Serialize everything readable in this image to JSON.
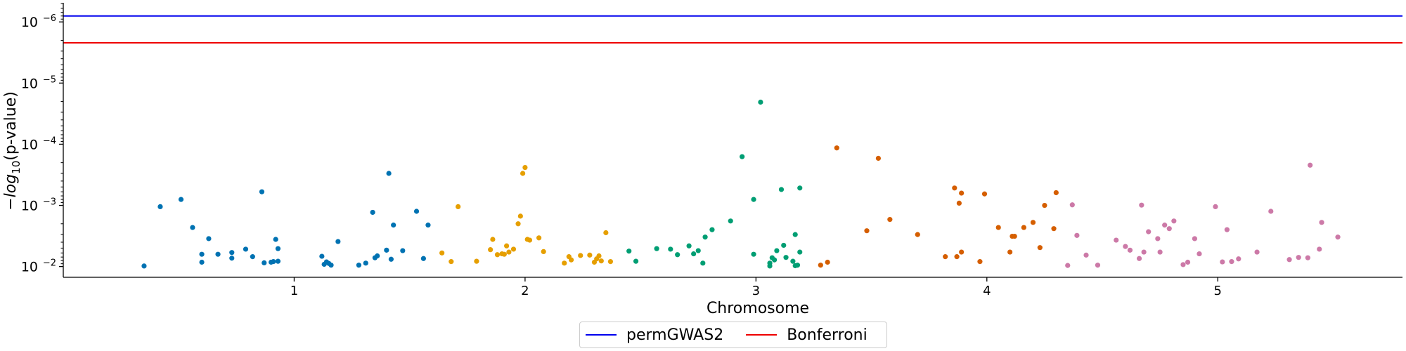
{
  "chart_data": {
    "type": "scatter",
    "title": "",
    "xlabel": "Chromosome",
    "ylabel": "−log10(p-value)",
    "ylabel_parts": {
      "prefix": "−",
      "log": "log",
      "sub": "10",
      "suffix": "(p-value)"
    },
    "yscale": "log",
    "yaxis_inverted": true,
    "ylim": [
      0.015,
      5e-07
    ],
    "xlim": [
      0,
      5.8
    ],
    "x_ticks": [
      {
        "value": 1,
        "label": "1"
      },
      {
        "value": 2,
        "label": "2"
      },
      {
        "value": 3,
        "label": "3"
      },
      {
        "value": 4,
        "label": "4"
      },
      {
        "value": 5,
        "label": "5"
      }
    ],
    "y_ticks": [
      {
        "value": 0.01,
        "base": "10",
        "exp": "−2"
      },
      {
        "value": 0.001,
        "base": "10",
        "exp": "−3"
      },
      {
        "value": 0.0001,
        "base": "10",
        "exp": "−4"
      },
      {
        "value": 1e-05,
        "base": "10",
        "exp": "−5"
      },
      {
        "value": 1e-06,
        "base": "10",
        "exp": "−6"
      }
    ],
    "thresholds": [
      {
        "name": "permGWAS2",
        "value": 8e-07,
        "color": "#0000ee"
      },
      {
        "name": "Bonferroni",
        "value": 2.2e-06,
        "color": "#ee0000"
      }
    ],
    "series": [
      {
        "name": "chr1",
        "color": "#0072b2",
        "x": [
          0.35,
          0.42,
          0.51,
          0.56,
          0.6,
          0.6,
          0.63,
          0.67,
          0.73,
          0.73,
          0.79,
          0.82,
          0.86,
          0.87,
          0.9,
          0.91,
          0.92,
          0.93,
          0.93,
          1.12,
          1.13,
          1.14,
          1.15,
          1.16,
          1.19,
          1.28,
          1.31,
          1.34,
          1.35,
          1.36,
          1.4,
          1.41,
          1.42,
          1.43,
          1.47,
          1.53,
          1.56,
          1.58
        ],
        "y": [
          0.0098,
          0.00105,
          0.0008,
          0.0023,
          0.0085,
          0.0063,
          0.0035,
          0.0063,
          0.0073,
          0.0059,
          0.0052,
          0.0069,
          0.0006,
          0.0087,
          0.0085,
          0.0083,
          0.0036,
          0.0051,
          0.0082,
          0.0068,
          0.0092,
          0.0084,
          0.0089,
          0.0095,
          0.0039,
          0.0095,
          0.0088,
          0.0013,
          0.0072,
          0.0067,
          0.0054,
          0.0003,
          0.0076,
          0.0021,
          0.0055,
          0.00125,
          0.0074,
          0.0021
        ]
      },
      {
        "name": "chr2",
        "color": "#e69f00",
        "x": [
          1.64,
          1.68,
          1.71,
          1.79,
          1.85,
          1.86,
          1.88,
          1.9,
          1.91,
          1.92,
          1.93,
          1.95,
          1.97,
          1.98,
          1.99,
          2.0,
          2.01,
          2.02,
          2.06,
          2.08,
          2.17,
          2.19,
          2.2,
          2.24,
          2.28,
          2.3,
          2.31,
          2.32,
          2.33,
          2.35,
          2.37
        ],
        "y": [
          0.006,
          0.0083,
          0.00105,
          0.0082,
          0.0053,
          0.0036,
          0.0064,
          0.0062,
          0.0063,
          0.0046,
          0.0058,
          0.0052,
          0.002,
          0.0015,
          0.0003,
          0.00024,
          0.0036,
          0.0037,
          0.0034,
          0.0057,
          0.0088,
          0.0069,
          0.0078,
          0.0066,
          0.0065,
          0.0085,
          0.0075,
          0.0067,
          0.0081,
          0.0028,
          0.0083
        ]
      },
      {
        "name": "chr3",
        "color": "#009e73",
        "x": [
          2.45,
          2.48,
          2.57,
          2.63,
          2.66,
          2.71,
          2.73,
          2.75,
          2.77,
          2.78,
          2.81,
          2.89,
          2.94,
          2.99,
          2.99,
          3.02,
          3.06,
          3.06,
          3.07,
          3.08,
          3.09,
          3.11,
          3.12,
          3.13,
          3.16,
          3.17,
          3.17,
          3.18,
          3.19,
          3.19
        ],
        "y": [
          0.0056,
          0.0082,
          0.0051,
          0.0052,
          0.0064,
          0.0046,
          0.0062,
          0.0055,
          0.0088,
          0.0033,
          0.0025,
          0.0018,
          0.00016,
          0.0063,
          0.0008,
          2.05e-05,
          0.0098,
          0.0088,
          0.0072,
          0.0078,
          0.0055,
          0.00055,
          0.0045,
          0.0071,
          0.0082,
          0.003,
          0.0097,
          0.0095,
          0.0058,
          0.00052
        ]
      },
      {
        "name": "chr4",
        "color": "#d55e00",
        "x": [
          3.28,
          3.31,
          3.35,
          3.48,
          3.53,
          3.58,
          3.7,
          3.82,
          3.86,
          3.87,
          3.88,
          3.89,
          3.89,
          3.97,
          3.99,
          4.05,
          4.1,
          4.11,
          4.12,
          4.16,
          4.2,
          4.23,
          4.25,
          4.29,
          4.3
        ],
        "y": [
          0.0095,
          0.0085,
          0.000115,
          0.0026,
          0.00017,
          0.0017,
          0.003,
          0.0069,
          0.00052,
          0.0069,
          0.00092,
          0.0058,
          0.00063,
          0.0083,
          0.00065,
          0.0023,
          0.0058,
          0.0032,
          0.0032,
          0.0023,
          0.0019,
          0.0049,
          0.001,
          0.0024,
          0.00062
        ]
      },
      {
        "name": "chr5",
        "color": "#cc79a7",
        "x": [
          4.35,
          4.37,
          4.39,
          4.43,
          4.48,
          4.56,
          4.6,
          4.62,
          4.66,
          4.67,
          4.68,
          4.7,
          4.74,
          4.75,
          4.77,
          4.79,
          4.81,
          4.85,
          4.87,
          4.9,
          4.92,
          4.99,
          5.02,
          5.04,
          5.06,
          5.09,
          5.17,
          5.23,
          5.31,
          5.35,
          5.39,
          5.4,
          5.44,
          5.45,
          5.52
        ],
        "y": [
          0.0096,
          0.00098,
          0.0031,
          0.0065,
          0.0095,
          0.0037,
          0.0047,
          0.0054,
          0.0074,
          0.00099,
          0.0058,
          0.0027,
          0.0035,
          0.0058,
          0.0021,
          0.0024,
          0.0018,
          0.0093,
          0.0085,
          0.0035,
          0.0062,
          0.00105,
          0.0084,
          0.0025,
          0.0083,
          0.0075,
          0.0058,
          0.00125,
          0.0077,
          0.0071,
          0.0072,
          0.00022,
          0.0052,
          0.0019,
          0.0033
        ]
      }
    ]
  }
}
